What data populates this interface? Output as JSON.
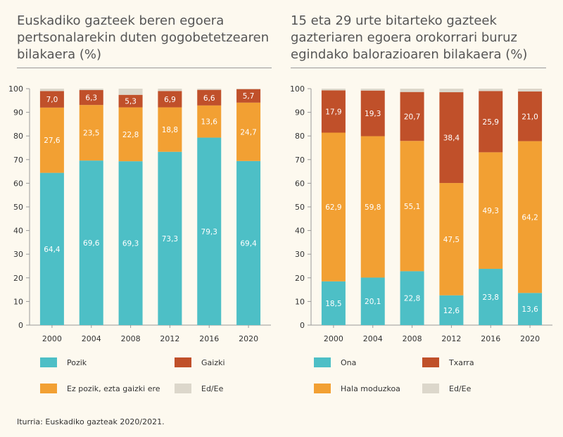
{
  "colors": {
    "pozik": "#4dbfc6",
    "neutral": "#f2a033",
    "gaizki": "#c0502a",
    "nr": "#dcd7cb"
  },
  "chart_data": [
    {
      "type": "bar",
      "stacked": true,
      "title": "Euskadiko gazteek beren egoera pertsonalarekin duten gogobetetzearen bilakaera (%)",
      "categories": [
        "2000",
        "2004",
        "2008",
        "2012",
        "2016",
        "2020"
      ],
      "yticks": [
        "0",
        "10",
        "20",
        "30",
        "40",
        "50",
        "60",
        "70",
        "80",
        "90",
        "100"
      ],
      "ylim": [
        0,
        100
      ],
      "series": [
        {
          "name": "Pozik",
          "values": [
            64.4,
            69.6,
            69.3,
            73.3,
            79.3,
            69.4
          ],
          "labels": [
            "64,4",
            "69,6",
            "69,3",
            "73,3",
            "79,3",
            "69,4"
          ],
          "color": "#4dbfc6"
        },
        {
          "name": "Ez pozik, ezta gaizki ere",
          "values": [
            27.6,
            23.5,
            22.8,
            18.8,
            13.6,
            24.7
          ],
          "labels": [
            "27,6",
            "23,5",
            "22,8",
            "18,8",
            "13,6",
            "24,7"
          ],
          "color": "#f2a033"
        },
        {
          "name": "Gaizki",
          "values": [
            7.0,
            6.3,
            5.3,
            6.9,
            6.6,
            5.7
          ],
          "labels": [
            "7,0",
            "6,3",
            "5,3",
            "6,9",
            "6,6",
            "5,7"
          ],
          "color": "#c0502a"
        },
        {
          "name": "Ed/Ee",
          "values": [
            1.0,
            0.6,
            2.6,
            1.0,
            0.5,
            0.2
          ],
          "labels": [],
          "color": "#dcd7cb"
        }
      ]
    },
    {
      "type": "bar",
      "stacked": true,
      "title": "15 eta 29 urte bitarteko gazteek gazteriaren egoera orokorrari buruz egindako balorazioaren bilakaera (%)",
      "categories": [
        "2000",
        "2004",
        "2008",
        "2012",
        "2016",
        "2020"
      ],
      "yticks": [
        "0",
        "10",
        "20",
        "30",
        "40",
        "50",
        "60",
        "70",
        "80",
        "90",
        "100"
      ],
      "ylim": [
        0,
        100
      ],
      "series": [
        {
          "name": "Ona",
          "values": [
            18.5,
            20.1,
            22.8,
            12.6,
            23.8,
            13.6
          ],
          "labels": [
            "18,5",
            "20,1",
            "22,8",
            "12,6",
            "23,8",
            "13,6"
          ],
          "color": "#4dbfc6"
        },
        {
          "name": "Hala moduzkoa",
          "values": [
            62.9,
            59.8,
            55.1,
            47.5,
            49.3,
            64.2
          ],
          "labels": [
            "62,9",
            "59,8",
            "55,1",
            "47,5",
            "49,3",
            "64,2"
          ],
          "color": "#f2a033"
        },
        {
          "name": "Txarra",
          "values": [
            17.9,
            19.3,
            20.7,
            38.4,
            25.9,
            21.0
          ],
          "labels": [
            "17,9",
            "19,3",
            "20,7",
            "38,4",
            "25,9",
            "21,0"
          ],
          "color": "#c0502a"
        },
        {
          "name": "Ed/Ee",
          "values": [
            0.7,
            0.8,
            1.4,
            1.5,
            1.0,
            1.2
          ],
          "labels": [],
          "color": "#dcd7cb"
        }
      ]
    }
  ],
  "legend_left": [
    "Pozik",
    "Gaizki",
    "Ez pozik, ezta gaizki ere",
    "Ed/Ee"
  ],
  "legend_right": [
    "Ona",
    "Txarra",
    "Hala moduzkoa",
    "Ed/Ee"
  ],
  "source": "Iturria: Euskadiko gazteak 2020/2021."
}
